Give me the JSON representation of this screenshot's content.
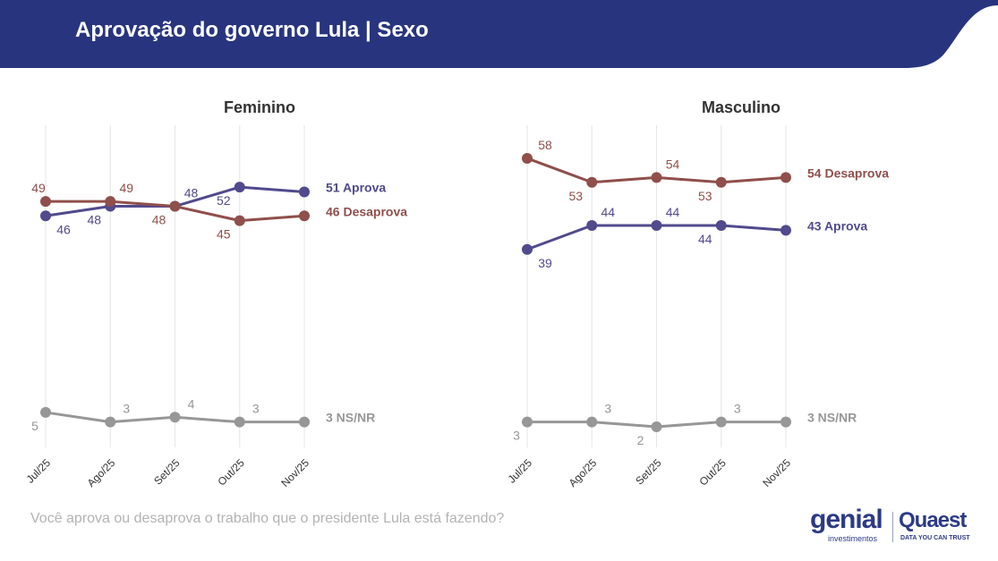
{
  "header": {
    "title": "Aprovação do governo Lula | Sexo"
  },
  "footer": {
    "question": "Você aprova ou desaprova o trabalho que o presidente Lula está fazendo?"
  },
  "logos": {
    "genial": "genial",
    "genial_sub": "investimentos",
    "quaest": "Quaest",
    "quaest_sub": "DATA YOU CAN TRUST"
  },
  "colors": {
    "header_bg": "#28357e",
    "aprova": "#514a8c",
    "desaprova": "#8f4f4b",
    "nsnr": "#979797",
    "grid": "#e6e6e6"
  },
  "chart_data": [
    {
      "type": "line",
      "title": "Feminino",
      "categories": [
        "Jul/25",
        "Ago/25",
        "Set/25",
        "Out/25",
        "Nov/25"
      ],
      "ylim": [
        0,
        60
      ],
      "series": [
        {
          "name": "Aprova",
          "key": "aprova",
          "values": [
            46,
            48,
            48,
            52,
            51
          ],
          "end_label": "51 Aprova",
          "label_pos": [
            "below",
            "below",
            "above",
            "below",
            "end"
          ]
        },
        {
          "name": "Desaprova",
          "key": "desaprova",
          "values": [
            49,
            49,
            48,
            45,
            46
          ],
          "end_label": "46 Desaprova",
          "label_pos": [
            "above",
            "above",
            "below",
            "below",
            "end"
          ]
        },
        {
          "name": "NS/NR",
          "key": "nsnr",
          "values": [
            5,
            3,
            4,
            3,
            3
          ],
          "end_label": "3 NS/NR",
          "label_pos": [
            "below",
            "above",
            "above",
            "above",
            "end"
          ]
        }
      ]
    },
    {
      "type": "line",
      "title": "Masculino",
      "categories": [
        "Jul/25",
        "Ago/25",
        "Set/25",
        "Out/25",
        "Nov/25"
      ],
      "ylim": [
        0,
        60
      ],
      "series": [
        {
          "name": "Desaprova",
          "key": "desaprova",
          "values": [
            58,
            53,
            54,
            53,
            54
          ],
          "end_label": "54 Desaprova",
          "label_pos": [
            "above",
            "below",
            "above",
            "below",
            "end"
          ]
        },
        {
          "name": "Aprova",
          "key": "aprova",
          "values": [
            39,
            44,
            44,
            44,
            43
          ],
          "end_label": "43 Aprova",
          "label_pos": [
            "below",
            "above",
            "above",
            "below",
            "end"
          ]
        },
        {
          "name": "NS/NR",
          "key": "nsnr",
          "values": [
            3,
            3,
            2,
            3,
            3
          ],
          "end_label": "3 NS/NR",
          "label_pos": [
            "below",
            "above",
            "below",
            "above",
            "end"
          ]
        }
      ]
    }
  ]
}
